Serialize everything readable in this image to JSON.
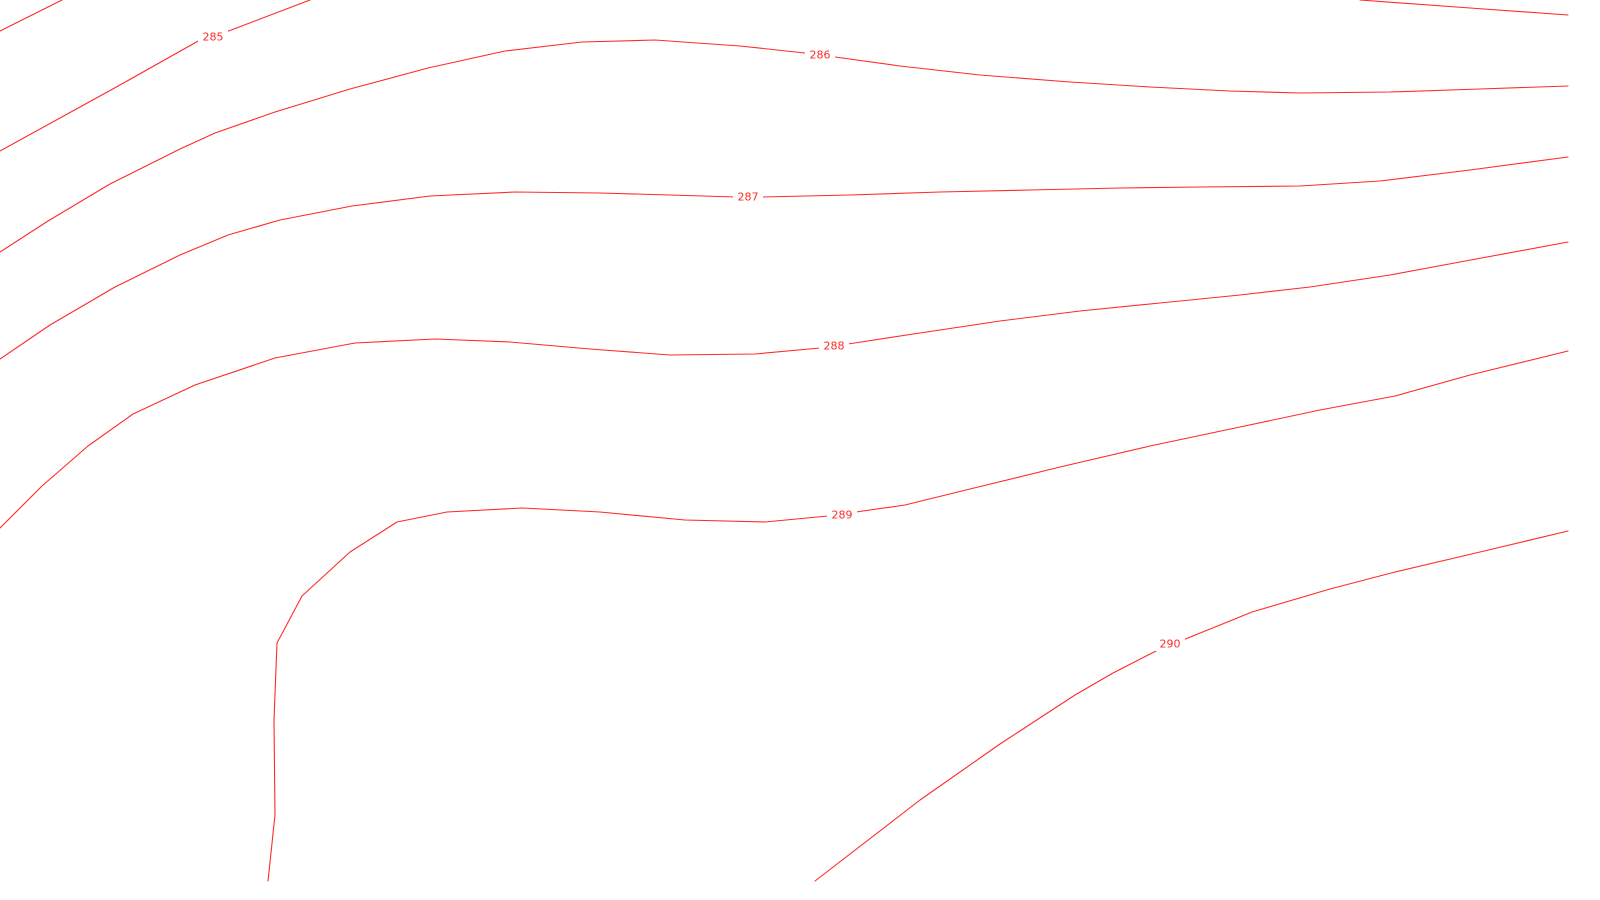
{
  "map": {
    "style": {
      "line_color": "#ff2a2a",
      "label_color": "#ff2a2a",
      "background": "#ffffff"
    },
    "contours": [
      {
        "label": "285"
      },
      {
        "label": ""
      },
      {
        "label": "286"
      },
      {
        "label": "287"
      },
      {
        "label": ""
      },
      {
        "label": "288"
      },
      {
        "label": "289"
      },
      {
        "label": "290"
      }
    ]
  }
}
